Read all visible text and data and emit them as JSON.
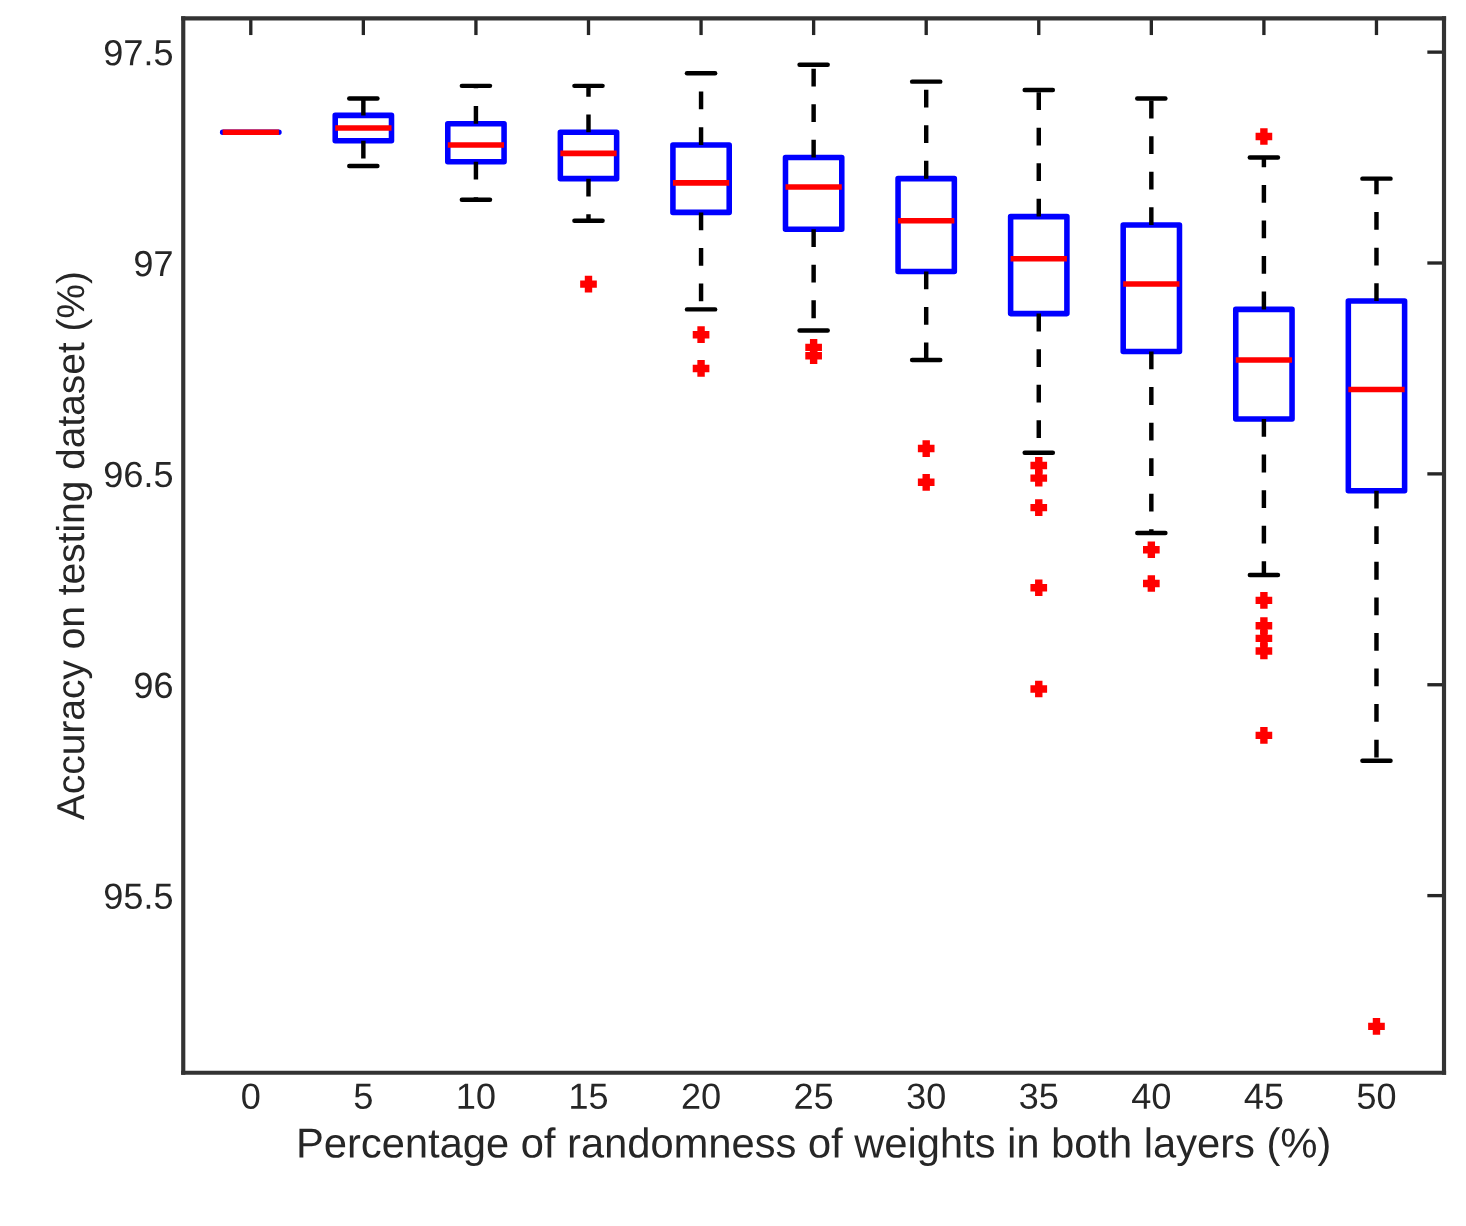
{
  "chart_data": {
    "type": "box",
    "xlabel": "Percentage of randomness of weights in both layers (%)",
    "ylabel": "Accuracy on testing dataset (%)",
    "categories": [
      "0",
      "5",
      "10",
      "15",
      "20",
      "25",
      "30",
      "35",
      "40",
      "45",
      "50"
    ],
    "series": [
      {
        "color": "#0000ff",
        "boxes": [
          {
            "low": 97.31,
            "q1": 97.31,
            "median": 97.31,
            "q3": 97.31,
            "high": 97.31
          },
          {
            "low": 97.23,
            "q1": 97.29,
            "median": 97.32,
            "q3": 97.35,
            "high": 97.39
          },
          {
            "low": 97.15,
            "q1": 97.24,
            "median": 97.28,
            "q3": 97.33,
            "high": 97.42
          },
          {
            "low": 97.1,
            "q1": 97.2,
            "median": 97.26,
            "q3": 97.31,
            "high": 97.42,
            "outliers": [
              96.95
            ]
          },
          {
            "low": 96.89,
            "q1": 97.12,
            "median": 97.19,
            "q3": 97.28,
            "high": 97.45,
            "outliers": [
              96.83,
              96.75
            ]
          },
          {
            "low": 96.84,
            "q1": 97.08,
            "median": 97.18,
            "q3": 97.25,
            "high": 97.47,
            "outliers": [
              96.8,
              96.78
            ]
          },
          {
            "low": 96.77,
            "q1": 96.98,
            "median": 97.1,
            "q3": 97.2,
            "high": 97.43,
            "outliers": [
              96.56,
              96.48
            ]
          },
          {
            "low": 96.55,
            "q1": 96.88,
            "median": 97.01,
            "q3": 97.11,
            "high": 97.41,
            "outliers": [
              96.52,
              96.49,
              96.42,
              96.23,
              95.99
            ]
          },
          {
            "low": 96.36,
            "q1": 96.79,
            "median": 96.95,
            "q3": 97.09,
            "high": 97.39,
            "outliers": [
              96.32,
              96.24
            ]
          },
          {
            "low": 96.26,
            "q1": 96.63,
            "median": 96.77,
            "q3": 96.89,
            "high": 97.25,
            "outliers": [
              97.3,
              96.2,
              96.14,
              96.11,
              96.08,
              95.88
            ]
          },
          {
            "low": 95.82,
            "q1": 96.46,
            "median": 96.7,
            "q3": 96.91,
            "high": 97.2,
            "outliers": [
              95.19
            ]
          }
        ]
      }
    ],
    "ylim": [
      95.08,
      97.58
    ],
    "yticks": [
      95.5,
      96,
      96.5,
      97,
      97.5
    ],
    "grid": false,
    "legend": false
  }
}
